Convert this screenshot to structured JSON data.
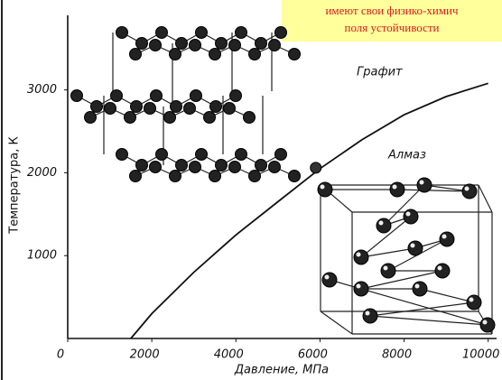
{
  "chart_data": {
    "type": "line",
    "x_label": "Давление, МПа",
    "y_label": "Температура, К",
    "annotations": [
      "Графит",
      "Алмаз"
    ],
    "note": [
      "имеют свои физико-химич",
      "поля устойчивости"
    ],
    "x": [
      1500,
      2000,
      3000,
      4000,
      5000,
      6000,
      7000,
      8000,
      9000,
      10000
    ],
    "values": [
      0,
      300,
      800,
      1250,
      1650,
      2050,
      2400,
      2700,
      2920,
      3080
    ],
    "point": [
      5900,
      2060
    ],
    "color": "#111111",
    "xlim": [
      0,
      10200
    ],
    "xticks": [
      0,
      2000,
      4000,
      6000,
      8000,
      10000
    ],
    "ylim": [
      0,
      3900
    ],
    "yticks": [
      1000,
      2000,
      3000
    ]
  }
}
